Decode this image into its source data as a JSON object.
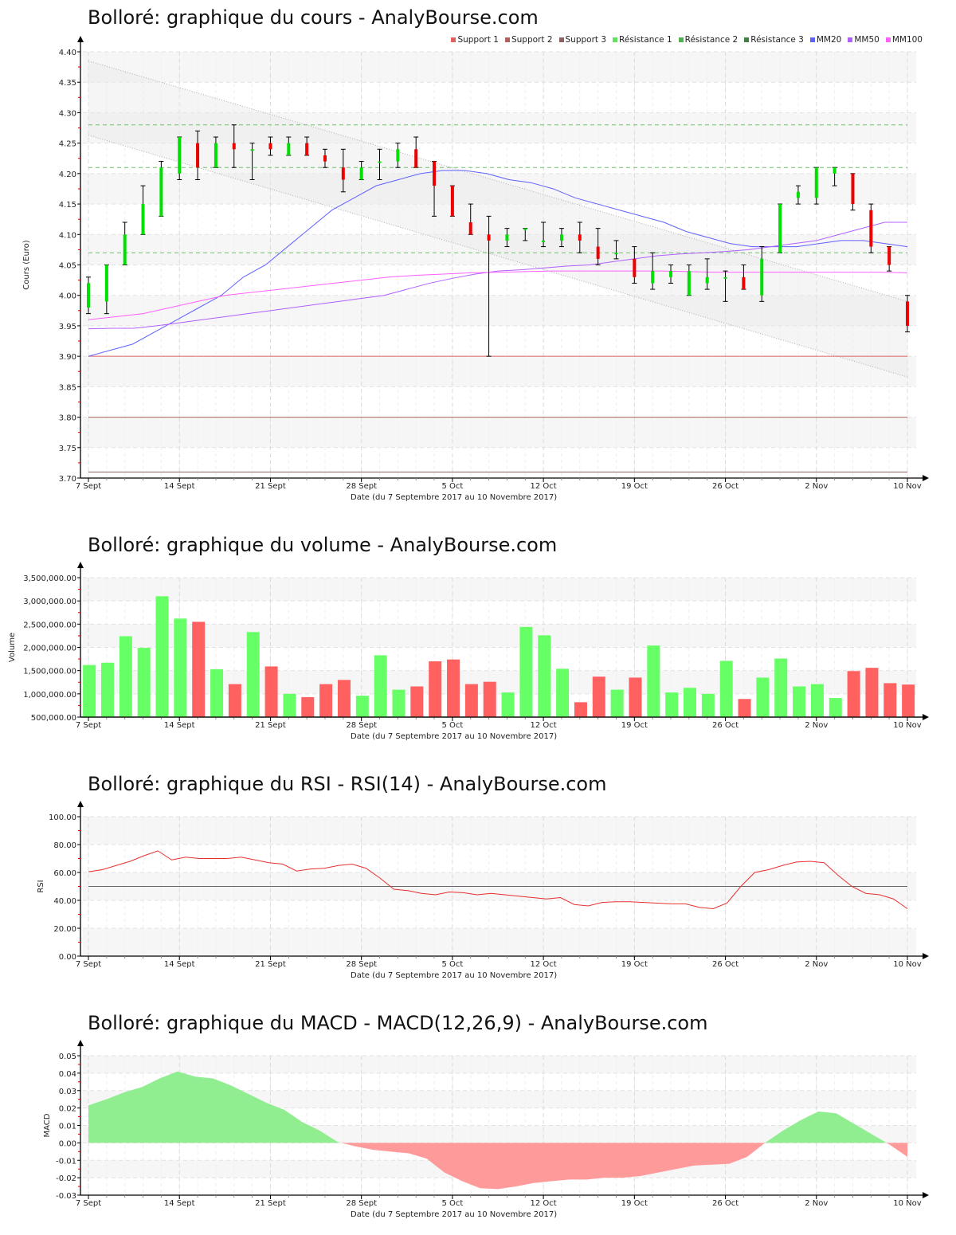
{
  "charts": {
    "price": {
      "title": "Bolloré: graphique du cours - AnalyBourse.com",
      "ylabel": "Cours (Euro)",
      "xlabel": "Date (du 7 Septembre 2017 au 10 Novembre 2017)",
      "legend": [
        {
          "label": "Support 1",
          "color": "#e06060"
        },
        {
          "label": "Support 2",
          "color": "#b06060"
        },
        {
          "label": "Support 3",
          "color": "#906060"
        },
        {
          "label": "Résistance 1",
          "color": "#60e060"
        },
        {
          "label": "Résistance 2",
          "color": "#50b050"
        },
        {
          "label": "Résistance 3",
          "color": "#408040"
        },
        {
          "label": "MM20",
          "color": "#6060ff"
        },
        {
          "label": "MM50",
          "color": "#b060ff"
        },
        {
          "label": "MM100",
          "color": "#ff60ff"
        }
      ]
    },
    "volume": {
      "title": "Bolloré: graphique du volume - AnalyBourse.com",
      "ylabel": "Volume",
      "xlabel": "Date (du 7 Septembre 2017 au 10 Novembre 2017)"
    },
    "rsi": {
      "title": "Bolloré: graphique du RSI - RSI(14) - AnalyBourse.com",
      "ylabel": "RSI",
      "xlabel": "Date (du 7 Septembre 2017 au 10 Novembre 2017)"
    },
    "macd": {
      "title": "Bolloré: graphique du MACD - MACD(12,26,9) - AnalyBourse.com",
      "ylabel": "MACD",
      "xlabel": "Date (du 7 Septembre 2017 au 10 Novembre 2017)"
    }
  },
  "chart_data": [
    {
      "type": "candlestick",
      "title": "Bolloré: graphique du cours - AnalyBourse.com",
      "xlabel": "Date (du 7 Septembre 2017 au 10 Novembre 2017)",
      "ylabel": "Cours (Euro)",
      "ylim": [
        3.7,
        4.4
      ],
      "yticks": [
        "4.40",
        "4.35",
        "4.30",
        "4.25",
        "4.20",
        "4.15",
        "4.10",
        "4.05",
        "4.00",
        "3.95",
        "3.90",
        "3.85",
        "3.80",
        "3.75",
        "3.70"
      ],
      "xticks": [
        {
          "label": "7 Sept",
          "index": 0
        },
        {
          "label": "14 Sept",
          "index": 5
        },
        {
          "label": "21 Sept",
          "index": 10
        },
        {
          "label": "28 Sept",
          "index": 15
        },
        {
          "label": "5 Oct",
          "index": 20
        },
        {
          "label": "12 Oct",
          "index": 25
        },
        {
          "label": "19 Oct",
          "index": 30
        },
        {
          "label": "26 Oct",
          "index": 35
        },
        {
          "label": "2 Nov",
          "index": 40
        },
        {
          "label": "10 Nov",
          "index": 45
        }
      ],
      "grid": true,
      "legend_position": "top-right",
      "candles": [
        {
          "o": 3.98,
          "c": 4.02,
          "h": 4.03,
          "l": 3.97
        },
        {
          "o": 3.99,
          "c": 4.05,
          "h": 4.05,
          "l": 3.97
        },
        {
          "o": 4.05,
          "c": 4.1,
          "h": 4.12,
          "l": 4.05
        },
        {
          "o": 4.1,
          "c": 4.15,
          "h": 4.18,
          "l": 4.1
        },
        {
          "o": 4.13,
          "c": 4.21,
          "h": 4.22,
          "l": 4.13
        },
        {
          "o": 4.2,
          "c": 4.26,
          "h": 4.26,
          "l": 4.19
        },
        {
          "o": 4.25,
          "c": 4.21,
          "h": 4.27,
          "l": 4.19
        },
        {
          "o": 4.21,
          "c": 4.25,
          "h": 4.26,
          "l": 4.21
        },
        {
          "o": 4.25,
          "c": 4.24,
          "h": 4.28,
          "l": 4.21
        },
        {
          "o": 4.24,
          "c": 4.24,
          "h": 4.25,
          "l": 4.19
        },
        {
          "o": 4.25,
          "c": 4.24,
          "h": 4.26,
          "l": 4.23
        },
        {
          "o": 4.23,
          "c": 4.25,
          "h": 4.26,
          "l": 4.23
        },
        {
          "o": 4.25,
          "c": 4.23,
          "h": 4.26,
          "l": 4.23
        },
        {
          "o": 4.23,
          "c": 4.22,
          "h": 4.24,
          "l": 4.21
        },
        {
          "o": 4.21,
          "c": 4.19,
          "h": 4.24,
          "l": 4.17
        },
        {
          "o": 4.19,
          "c": 4.21,
          "h": 4.22,
          "l": 4.19
        },
        {
          "o": 4.22,
          "c": 4.22,
          "h": 4.24,
          "l": 4.19
        },
        {
          "o": 4.22,
          "c": 4.24,
          "h": 4.25,
          "l": 4.21
        },
        {
          "o": 4.24,
          "c": 4.21,
          "h": 4.26,
          "l": 4.21
        },
        {
          "o": 4.22,
          "c": 4.18,
          "h": 4.22,
          "l": 4.13
        },
        {
          "o": 4.18,
          "c": 4.13,
          "h": 4.18,
          "l": 4.13
        },
        {
          "o": 4.12,
          "c": 4.1,
          "h": 4.15,
          "l": 4.1
        },
        {
          "o": 4.1,
          "c": 4.09,
          "h": 4.13,
          "l": 3.9
        },
        {
          "o": 4.09,
          "c": 4.1,
          "h": 4.11,
          "l": 4.08
        },
        {
          "o": 4.11,
          "c": 4.11,
          "h": 4.11,
          "l": 4.09
        },
        {
          "o": 4.09,
          "c": 4.09,
          "h": 4.12,
          "l": 4.08
        },
        {
          "o": 4.09,
          "c": 4.1,
          "h": 4.11,
          "l": 4.08
        },
        {
          "o": 4.1,
          "c": 4.09,
          "h": 4.12,
          "l": 4.07
        },
        {
          "o": 4.08,
          "c": 4.06,
          "h": 4.11,
          "l": 4.05
        },
        {
          "o": 4.07,
          "c": 4.07,
          "h": 4.09,
          "l": 4.06
        },
        {
          "o": 4.06,
          "c": 4.03,
          "h": 4.08,
          "l": 4.02
        },
        {
          "o": 4.02,
          "c": 4.04,
          "h": 4.07,
          "l": 4.01
        },
        {
          "o": 4.03,
          "c": 4.04,
          "h": 4.05,
          "l": 4.02
        },
        {
          "o": 4.0,
          "c": 4.04,
          "h": 4.05,
          "l": 4.0
        },
        {
          "o": 4.02,
          "c": 4.03,
          "h": 4.06,
          "l": 4.01
        },
        {
          "o": 4.03,
          "c": 4.03,
          "h": 4.04,
          "l": 3.99
        },
        {
          "o": 4.03,
          "c": 4.01,
          "h": 4.05,
          "l": 4.01
        },
        {
          "o": 4.0,
          "c": 4.06,
          "h": 4.08,
          "l": 3.99
        },
        {
          "o": 4.07,
          "c": 4.15,
          "h": 4.15,
          "l": 4.07
        },
        {
          "o": 4.16,
          "c": 4.17,
          "h": 4.18,
          "l": 4.15
        },
        {
          "o": 4.16,
          "c": 4.21,
          "h": 4.21,
          "l": 4.15
        },
        {
          "o": 4.2,
          "c": 4.21,
          "h": 4.21,
          "l": 4.18
        },
        {
          "o": 4.2,
          "c": 4.15,
          "h": 4.2,
          "l": 4.14
        },
        {
          "o": 4.14,
          "c": 4.08,
          "h": 4.15,
          "l": 4.07
        },
        {
          "o": 4.08,
          "c": 4.05,
          "h": 4.08,
          "l": 4.04
        },
        {
          "o": 3.99,
          "c": 3.95,
          "h": 4.0,
          "l": 3.94
        }
      ],
      "series": [
        {
          "name": "Support 1",
          "type": "hline",
          "value": 3.9,
          "color": "#e06060"
        },
        {
          "name": "Support 2",
          "type": "hline",
          "value": 3.8,
          "color": "#b06060"
        },
        {
          "name": "Support 3",
          "type": "hline",
          "value": 3.71,
          "color": "#906060"
        },
        {
          "name": "Résistance 1",
          "type": "hline",
          "value": 4.07,
          "color": "#60e060"
        },
        {
          "name": "Résistance 2",
          "type": "hline",
          "value": 4.21,
          "color": "#50b050"
        },
        {
          "name": "Résistance 3",
          "type": "hline",
          "value": 4.28,
          "color": "#408040"
        },
        {
          "name": "MM20",
          "color": "#6060ff",
          "values": [
            3.9,
            3.91,
            3.92,
            3.94,
            3.96,
            3.98,
            4.0,
            4.03,
            4.05,
            4.08,
            4.11,
            4.14,
            4.16,
            4.18,
            4.19,
            4.2,
            4.205,
            4.205,
            4.2,
            4.19,
            4.185,
            4.175,
            4.16,
            4.15,
            4.14,
            4.13,
            4.12,
            4.105,
            4.095,
            4.085,
            4.08,
            4.08,
            4.08,
            4.085,
            4.09,
            4.09,
            4.085,
            4.08
          ]
        },
        {
          "name": "MM50",
          "color": "#b060ff",
          "values": [
            3.945,
            3.946,
            3.946,
            3.95,
            3.955,
            3.96,
            3.965,
            3.97,
            3.975,
            3.98,
            3.985,
            3.99,
            3.995,
            4.0,
            4.01,
            4.02,
            4.028,
            4.035,
            4.04,
            4.042,
            4.045,
            4.048,
            4.05,
            4.055,
            4.06,
            4.065,
            4.068,
            4.07,
            4.072,
            4.075,
            4.08,
            4.085,
            4.09,
            4.1,
            4.11,
            4.12,
            4.12
          ]
        },
        {
          "name": "MM100",
          "color": "#ff60ff",
          "values": [
            3.96,
            3.965,
            3.97,
            3.98,
            3.99,
            4.0,
            4.005,
            4.01,
            4.015,
            4.02,
            4.025,
            4.03,
            4.033,
            4.035,
            4.037,
            4.038,
            4.039,
            4.04,
            4.04,
            4.04,
            4.04,
            4.04,
            4.039,
            4.038,
            4.038,
            4.038,
            4.038,
            4.038,
            4.038,
            4.038,
            4.037
          ]
        },
        {
          "name": "Trend channel upper",
          "type": "line",
          "from": 4.385,
          "to": 3.99,
          "color": "#aaaaaa"
        },
        {
          "name": "Trend channel lower",
          "type": "line",
          "from": 4.263,
          "to": 3.866,
          "color": "#aaaaaa"
        }
      ]
    },
    {
      "type": "bar",
      "title": "Bolloré: graphique du volume - AnalyBourse.com",
      "xlabel": "Date (du 7 Septembre 2017 au 10 Novembre 2017)",
      "ylabel": "Volume",
      "ylim": [
        500000,
        3500000
      ],
      "yticks": [
        "3,500,000.00",
        "3,000,000.00",
        "2,500,000.00",
        "2,000,000.00",
        "1,500,000.00",
        "1,000,000.00",
        "500,000.00"
      ],
      "grid": true,
      "values": [
        1620000,
        1670000,
        2240000,
        1990000,
        3100000,
        2620000,
        2550000,
        1530000,
        1210000,
        2330000,
        1590000,
        1000000,
        930000,
        1210000,
        1300000,
        960000,
        1830000,
        1090000,
        1160000,
        1700000,
        1740000,
        1210000,
        1260000,
        1030000,
        2440000,
        2260000,
        1540000,
        820000,
        1370000,
        1090000,
        1350000,
        2040000,
        1030000,
        1130000,
        1000000,
        1710000,
        890000,
        1350000,
        1760000,
        1160000,
        1210000,
        910000,
        1490000,
        1560000,
        1230000,
        1200000
      ],
      "colors": [
        "g",
        "g",
        "g",
        "g",
        "g",
        "g",
        "r",
        "g",
        "r",
        "g",
        "r",
        "g",
        "r",
        "r",
        "r",
        "g",
        "g",
        "g",
        "r",
        "r",
        "r",
        "r",
        "r",
        "g",
        "g",
        "g",
        "g",
        "r",
        "r",
        "g",
        "r",
        "g",
        "g",
        "g",
        "g",
        "g",
        "r",
        "g",
        "g",
        "g",
        "g",
        "g",
        "r",
        "r",
        "r",
        "r"
      ],
      "color_up": "#66ff66",
      "color_down": "#ff6060"
    },
    {
      "type": "line",
      "title": "Bolloré: graphique du RSI - RSI(14) - AnalyBourse.com",
      "xlabel": "Date (du 7 Septembre 2017 au 10 Novembre 2017)",
      "ylabel": "RSI",
      "ylim": [
        0,
        100
      ],
      "yticks": [
        "100.00",
        "80.00",
        "60.00",
        "40.00",
        "20.00",
        "0.00"
      ],
      "grid": true,
      "reference_line": 50,
      "series": [
        {
          "name": "RSI(14)",
          "color": "#e83030",
          "values": [
            60.5,
            62,
            65,
            68,
            72,
            75.5,
            69,
            71,
            70,
            70,
            70,
            71,
            69,
            67,
            66,
            61,
            62.5,
            63,
            65,
            66,
            63,
            56,
            48,
            47,
            45,
            44,
            46,
            45.5,
            44,
            45,
            44,
            43,
            42,
            41,
            42,
            37,
            36,
            38.5,
            39,
            39,
            38.5,
            38,
            37.5,
            37.5,
            35,
            34,
            38,
            50,
            60,
            62,
            65,
            67.5,
            68,
            67,
            58,
            50,
            45,
            44,
            41,
            34
          ]
        }
      ]
    },
    {
      "type": "area",
      "title": "Bolloré: graphique du MACD - MACD(12,26,9) - AnalyBourse.com",
      "xlabel": "Date (du 7 Septembre 2017 au 10 Novembre 2017)",
      "ylabel": "MACD",
      "ylim": [
        -0.03,
        0.05
      ],
      "yticks": [
        "0.05",
        "0.04",
        "0.03",
        "0.02",
        "0.01",
        "0.00",
        "-0.01",
        "-0.02",
        "-0.03"
      ],
      "grid": true,
      "color_positive": "#90ee90",
      "color_negative": "#ff9a9a",
      "series": [
        {
          "name": "MACD",
          "values": [
            0.0215,
            0.025,
            0.029,
            0.032,
            0.037,
            0.041,
            0.038,
            0.037,
            0.033,
            0.028,
            0.023,
            0.019,
            0.012,
            0.007,
            0.0005,
            -0.002,
            -0.004,
            -0.005,
            -0.006,
            -0.009,
            -0.017,
            -0.022,
            -0.026,
            -0.0265,
            -0.025,
            -0.023,
            -0.022,
            -0.021,
            -0.021,
            -0.02,
            -0.02,
            -0.019,
            -0.017,
            -0.015,
            -0.013,
            -0.0125,
            -0.012,
            -0.008,
            0.0,
            0.007,
            0.013,
            0.018,
            0.017,
            0.011,
            0.005,
            -0.001,
            -0.008
          ]
        }
      ]
    }
  ]
}
